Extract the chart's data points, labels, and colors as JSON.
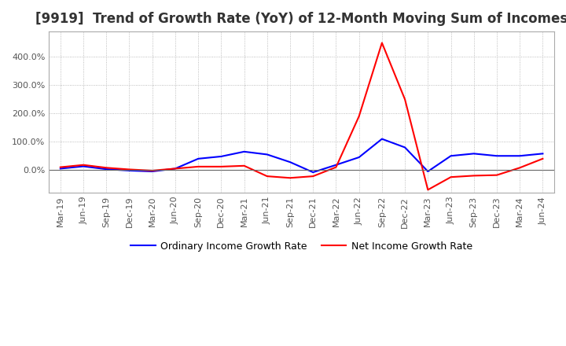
{
  "title": "[9919]  Trend of Growth Rate (YoY) of 12-Month Moving Sum of Incomes",
  "title_fontsize": 12,
  "legend_labels": [
    "Ordinary Income Growth Rate",
    "Net Income Growth Rate"
  ],
  "legend_colors": [
    "#0000FF",
    "#FF0000"
  ],
  "x_labels": [
    "Mar-19",
    "Jun-19",
    "Sep-19",
    "Dec-19",
    "Mar-20",
    "Jun-20",
    "Sep-20",
    "Dec-20",
    "Mar-21",
    "Jun-21",
    "Sep-21",
    "Dec-21",
    "Mar-22",
    "Jun-22",
    "Sep-22",
    "Dec-22",
    "Mar-23",
    "Jun-23",
    "Sep-23",
    "Dec-23",
    "Mar-24",
    "Jun-24"
  ],
  "ordinary_income": [
    5,
    13,
    3,
    -2,
    -5,
    5,
    40,
    48,
    65,
    55,
    28,
    -8,
    18,
    45,
    110,
    80,
    -5,
    50,
    58,
    50,
    50,
    58
  ],
  "net_income": [
    10,
    18,
    8,
    2,
    -2,
    5,
    12,
    12,
    15,
    -22,
    -28,
    -22,
    10,
    190,
    450,
    250,
    -70,
    -25,
    -20,
    -18,
    8,
    40
  ],
  "ylim_min": -80,
  "ylim_max": 490,
  "yticks": [
    0,
    100,
    200,
    300,
    400
  ],
  "zero_line": 0,
  "background_color": "#FFFFFF",
  "grid_color": "#AAAAAA",
  "plot_bg_color": "#FFFFFF"
}
